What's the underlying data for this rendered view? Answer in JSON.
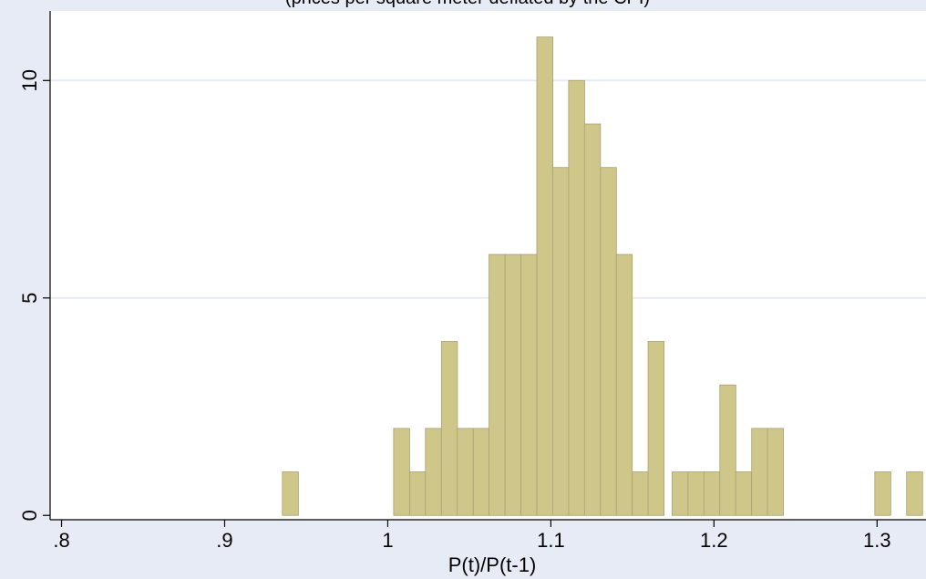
{
  "chart_data": {
    "type": "bar",
    "subtitle": "(prices per square meter deflated by the CPI)",
    "xlabel": "P(t)/P(t-1)",
    "ylabel": "",
    "x_ticks": [
      ".8",
      ".9",
      "1",
      "1.1",
      "1.2",
      "1.3"
    ],
    "x_tick_values": [
      0.8,
      0.9,
      1.0,
      1.1,
      1.2,
      1.3
    ],
    "y_ticks": [
      "0",
      "5",
      "10"
    ],
    "y_tick_values": [
      0,
      5,
      10
    ],
    "xlim": [
      0.793,
      1.33
    ],
    "ylim": [
      -0.1,
      11.6
    ],
    "grid": true,
    "bin_width": 0.0098,
    "bins": [
      {
        "x0": 0.9354,
        "value": 1
      },
      {
        "x0": 1.0036,
        "value": 2
      },
      {
        "x0": 1.0134,
        "value": 1
      },
      {
        "x0": 1.0231,
        "value": 2
      },
      {
        "x0": 1.0329,
        "value": 4
      },
      {
        "x0": 1.0426,
        "value": 2
      },
      {
        "x0": 1.0524,
        "value": 2
      },
      {
        "x0": 1.0621,
        "value": 6
      },
      {
        "x0": 1.0719,
        "value": 6
      },
      {
        "x0": 1.0816,
        "value": 6
      },
      {
        "x0": 1.0914,
        "value": 11
      },
      {
        "x0": 1.1011,
        "value": 8
      },
      {
        "x0": 1.1109,
        "value": 10
      },
      {
        "x0": 1.1206,
        "value": 9
      },
      {
        "x0": 1.1304,
        "value": 8
      },
      {
        "x0": 1.1401,
        "value": 6
      },
      {
        "x0": 1.1499,
        "value": 1
      },
      {
        "x0": 1.1596,
        "value": 4
      },
      {
        "x0": 1.1743,
        "value": 1
      },
      {
        "x0": 1.1841,
        "value": 1
      },
      {
        "x0": 1.1938,
        "value": 1
      },
      {
        "x0": 1.2036,
        "value": 3
      },
      {
        "x0": 1.2133,
        "value": 1
      },
      {
        "x0": 1.2231,
        "value": 2
      },
      {
        "x0": 1.2328,
        "value": 2
      },
      {
        "x0": 1.2986,
        "value": 1
      },
      {
        "x0": 1.3181,
        "value": 1
      }
    ]
  },
  "colors": {
    "background": "#e6ebf5",
    "plot_area": "#ffffff",
    "bar_fill": "#cfc78a",
    "bar_stroke": "#a8a070",
    "grid": "#e6ebf5",
    "axis": "#000000"
  }
}
